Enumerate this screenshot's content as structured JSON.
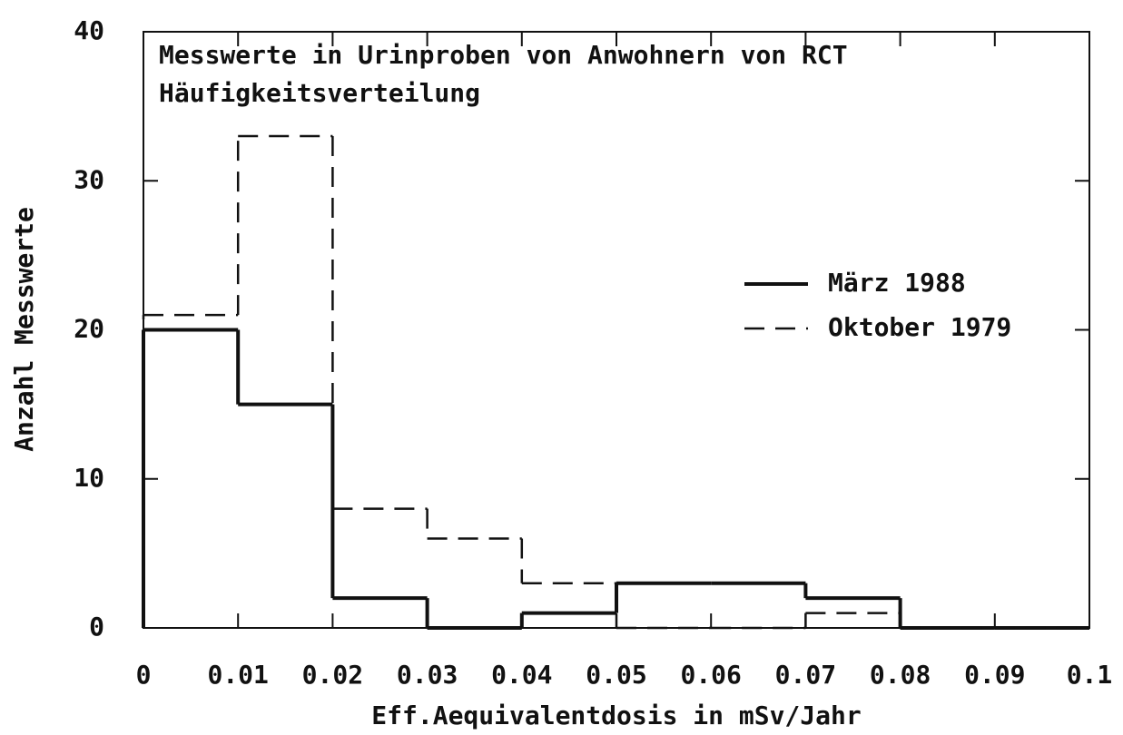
{
  "chart_data": {
    "type": "histogram",
    "title": "Messwerte in Urinproben von Anwohnern von RCT",
    "subtitle": "Häufigkeitsverteilung",
    "x_label": "Eff.Aequivalentdosis in mSv/Jahr",
    "y_label": "Anzahl Messwerte",
    "bins": [
      0,
      0.01,
      0.02,
      0.03,
      0.04,
      0.05,
      0.06,
      0.07,
      0.08,
      0.09,
      0.1
    ],
    "series": [
      {
        "name": "März 1988",
        "color": "#111111",
        "linestyle": "solid",
        "values": [
          20,
          15,
          2,
          0,
          1,
          3,
          3,
          2,
          0,
          0
        ]
      },
      {
        "name": "Oktober 1979",
        "color": "#111111",
        "linestyle": "dashed",
        "values": [
          21,
          33,
          8,
          6,
          3,
          0,
          0,
          1,
          0,
          0
        ]
      }
    ],
    "xlim": [
      0,
      0.1
    ],
    "xticks": [
      0,
      0.01,
      0.02,
      0.03,
      0.04,
      0.05,
      0.06,
      0.07,
      0.08,
      0.09,
      0.1
    ],
    "ylim": [
      0,
      40
    ],
    "yticks": [
      0,
      10,
      20,
      30,
      40
    ],
    "legend": "right",
    "grid": false
  }
}
